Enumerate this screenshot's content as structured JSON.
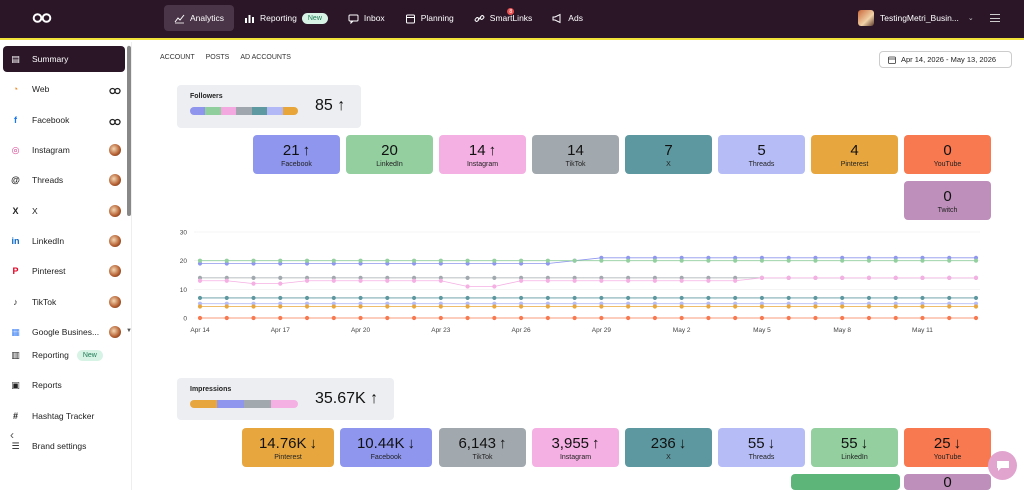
{
  "topbar": {
    "nav": [
      {
        "label": "Analytics",
        "icon": "analytics-icon",
        "active": true
      },
      {
        "label": "Reporting",
        "icon": "reporting-icon",
        "badge": "New"
      },
      {
        "label": "Inbox",
        "icon": "inbox-icon"
      },
      {
        "label": "Planning",
        "icon": "calendar-icon"
      },
      {
        "label": "SmartLinks",
        "icon": "link-icon",
        "dot": "8"
      },
      {
        "label": "Ads",
        "icon": "megaphone-icon"
      }
    ],
    "account_name": "TestingMetri_Busin..."
  },
  "sidebar": {
    "items": [
      {
        "label": "Summary",
        "icon": "clipboard-icon",
        "active": true
      },
      {
        "label": "Web",
        "icon": "rss-icon",
        "right": "logo"
      },
      {
        "label": "Facebook",
        "icon": "facebook-icon",
        "right": "logo"
      },
      {
        "label": "Instagram",
        "icon": "instagram-icon",
        "right": "avatar"
      },
      {
        "label": "Threads",
        "icon": "threads-icon",
        "right": "avatar"
      },
      {
        "label": "X",
        "icon": "x-icon",
        "right": "avatar"
      },
      {
        "label": "LinkedIn",
        "icon": "linkedin-icon",
        "right": "avatar"
      },
      {
        "label": "Pinterest",
        "icon": "pinterest-icon",
        "right": "avatar"
      },
      {
        "label": "TikTok",
        "icon": "tiktok-icon",
        "right": "avatar"
      },
      {
        "label": "Google Busines...",
        "icon": "google-business-icon",
        "right": "avatar"
      },
      {
        "label": "Reporting",
        "icon": "reporting-icon",
        "badge": "New"
      },
      {
        "label": "Reports",
        "icon": "reports-icon"
      },
      {
        "label": "Hashtag Tracker",
        "icon": "hashtag-icon"
      },
      {
        "label": "Brand settings",
        "icon": "sliders-icon"
      }
    ]
  },
  "subnav": [
    "ACCOUNT",
    "POSTS",
    "AD ACCOUNTS"
  ],
  "date_range": "Apr 14, 2026 - May 13, 2026",
  "followers": {
    "title": "Followers",
    "total": "85",
    "bar_colors": [
      "#8f95ec",
      "#90cf9d",
      "#f3a9e0",
      "#a0a6ad",
      "#5e98a0",
      "#b1b8f5",
      "#e8a63a"
    ],
    "cards": [
      {
        "value": "21",
        "trend": "↑",
        "label": "Facebook",
        "color": "#8e96ee"
      },
      {
        "value": "20",
        "trend": "",
        "label": "LinkedIn",
        "color": "#93cf9f"
      },
      {
        "value": "14",
        "trend": "↑",
        "label": "Instagram",
        "color": "#f5b0e3"
      },
      {
        "value": "14",
        "trend": "",
        "label": "TikTok",
        "color": "#a2a9ae"
      },
      {
        "value": "7",
        "trend": "",
        "label": "X",
        "color": "#5d98a0"
      },
      {
        "value": "5",
        "trend": "",
        "label": "Threads",
        "color": "#b6bdf6"
      },
      {
        "value": "4",
        "trend": "",
        "label": "Pinterest",
        "color": "#e8a73e"
      },
      {
        "value": "0",
        "trend": "",
        "label": "YouTube",
        "color": "#f8784f"
      },
      {
        "value": "0",
        "trend": "",
        "label": "Twitch",
        "color": "#be8fbb"
      }
    ]
  },
  "chart_data": {
    "type": "line",
    "ylim": [
      0,
      30
    ],
    "yticks": [
      "30",
      "20",
      "10",
      "0"
    ],
    "x": [
      "Apr 14",
      "Apr 15",
      "Apr 16",
      "Apr 17",
      "Apr 18",
      "Apr 19",
      "Apr 20",
      "Apr 21",
      "Apr 22",
      "Apr 23",
      "Apr 24",
      "Apr 25",
      "Apr 26",
      "Apr 27",
      "Apr 28",
      "Apr 29",
      "Apr 30",
      "May 1",
      "May 2",
      "May 3",
      "May 4",
      "May 5",
      "May 6",
      "May 7",
      "May 8",
      "May 9",
      "May 10",
      "May 11",
      "May 12",
      "May 13"
    ],
    "xticks": [
      "Apr 14",
      "Apr 17",
      "Apr 20",
      "Apr 23",
      "Apr 26",
      "Apr 29",
      "May 2",
      "May 5",
      "May 8",
      "May 11"
    ],
    "series": [
      {
        "color": "#8e96ee",
        "values": [
          19,
          19,
          19,
          19,
          19,
          19,
          19,
          19,
          19,
          19,
          19,
          19,
          19,
          19,
          20,
          21,
          21,
          21,
          21,
          21,
          21,
          21,
          21,
          21,
          21,
          21,
          21,
          21,
          21,
          21
        ]
      },
      {
        "color": "#93cf9f",
        "values": [
          20,
          20,
          20,
          20,
          20,
          20,
          20,
          20,
          20,
          20,
          20,
          20,
          20,
          20,
          20,
          20,
          20,
          20,
          20,
          20,
          20,
          20,
          20,
          20,
          20,
          20,
          20,
          20,
          20,
          20
        ]
      },
      {
        "color": "#a2a9ae",
        "values": [
          14,
          14,
          14,
          14,
          14,
          14,
          14,
          14,
          14,
          14,
          14,
          14,
          14,
          14,
          14,
          14,
          14,
          14,
          14,
          14,
          14,
          14,
          14,
          14,
          14,
          14,
          14,
          14,
          14,
          14
        ]
      },
      {
        "color": "#f5b0e3",
        "values": [
          13,
          13,
          12,
          12,
          13,
          13,
          13,
          13,
          13,
          13,
          11,
          11,
          13,
          13,
          13,
          13,
          13,
          13,
          13,
          13,
          13,
          14,
          14,
          14,
          14,
          14,
          14,
          14,
          14,
          14
        ]
      },
      {
        "color": "#5d98a0",
        "values": [
          7,
          7,
          7,
          7,
          7,
          7,
          7,
          7,
          7,
          7,
          7,
          7,
          7,
          7,
          7,
          7,
          7,
          7,
          7,
          7,
          7,
          7,
          7,
          7,
          7,
          7,
          7,
          7,
          7,
          7
        ]
      },
      {
        "color": "#b6bdf6",
        "values": [
          5,
          5,
          5,
          5,
          5,
          5,
          5,
          5,
          5,
          5,
          5,
          5,
          5,
          5,
          5,
          5,
          5,
          5,
          5,
          5,
          5,
          5,
          5,
          5,
          5,
          5,
          5,
          5,
          5,
          5
        ]
      },
      {
        "color": "#e8a73e",
        "values": [
          4,
          4,
          4,
          4,
          4,
          4,
          4,
          4,
          4,
          4,
          4,
          4,
          4,
          4,
          4,
          4,
          4,
          4,
          4,
          4,
          4,
          4,
          4,
          4,
          4,
          4,
          4,
          4,
          4,
          4
        ]
      },
      {
        "color": "#f8784f",
        "values": [
          0,
          0,
          0,
          0,
          0,
          0,
          0,
          0,
          0,
          0,
          0,
          0,
          0,
          0,
          0,
          0,
          0,
          0,
          0,
          0,
          0,
          0,
          0,
          0,
          0,
          0,
          0,
          0,
          0,
          0
        ]
      }
    ]
  },
  "impressions": {
    "title": "Impressions",
    "total": "35.67K",
    "bar_colors": [
      "#e8a73e",
      "#8e96ee",
      "#a2a9ae",
      "#f5b0e3"
    ],
    "cards": [
      {
        "value": "14.76K",
        "trend": "↓",
        "label": "Pinterest",
        "color": "#e8a73e"
      },
      {
        "value": "10.44K",
        "trend": "↓",
        "label": "Facebook",
        "color": "#8e96ee"
      },
      {
        "value": "6,143",
        "trend": "↑",
        "label": "TikTok",
        "color": "#a2a9ae"
      },
      {
        "value": "3,955",
        "trend": "↑",
        "label": "Instagram",
        "color": "#f5b0e3"
      },
      {
        "value": "236",
        "trend": "↓",
        "label": "X",
        "color": "#5d98a0"
      },
      {
        "value": "55",
        "trend": "↓",
        "label": "Threads",
        "color": "#b6bdf6"
      },
      {
        "value": "55",
        "trend": "↓",
        "label": "LinkedIn",
        "color": "#93cf9f"
      },
      {
        "value": "25",
        "trend": "↓",
        "label": "YouTube",
        "color": "#f8784f"
      },
      {
        "value": "",
        "trend": "",
        "label": "",
        "color": "#5db57a"
      },
      {
        "value": "0",
        "trend": "",
        "label": "",
        "color": "#be8fbb"
      }
    ]
  }
}
